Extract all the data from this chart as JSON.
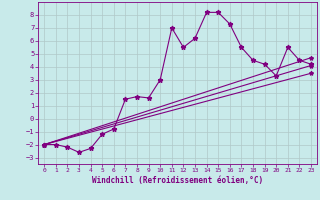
{
  "background_color": "#c8eaea",
  "grid_color": "#b0c8c8",
  "line_color": "#800080",
  "xlim": [
    -0.5,
    23.5
  ],
  "ylim": [
    -3.5,
    9.0
  ],
  "xticks": [
    0,
    1,
    2,
    3,
    4,
    5,
    6,
    7,
    8,
    9,
    10,
    11,
    12,
    13,
    14,
    15,
    16,
    17,
    18,
    19,
    20,
    21,
    22,
    23
  ],
  "yticks": [
    -3,
    -2,
    -1,
    0,
    1,
    2,
    3,
    4,
    5,
    6,
    7,
    8
  ],
  "xlabel": "Windchill (Refroidissement éolien,°C)",
  "series": [
    [
      0,
      -2.0
    ],
    [
      1,
      -2.0
    ],
    [
      2,
      -2.2
    ],
    [
      3,
      -2.6
    ],
    [
      4,
      -2.3
    ],
    [
      5,
      -1.2
    ],
    [
      6,
      -0.8
    ],
    [
      7,
      1.5
    ],
    [
      8,
      1.7
    ],
    [
      9,
      1.6
    ],
    [
      10,
      3.0
    ],
    [
      11,
      7.0
    ],
    [
      12,
      5.5
    ],
    [
      13,
      6.2
    ],
    [
      14,
      8.2
    ],
    [
      15,
      8.2
    ],
    [
      16,
      7.3
    ],
    [
      17,
      5.5
    ],
    [
      18,
      4.5
    ],
    [
      19,
      4.2
    ],
    [
      20,
      3.3
    ],
    [
      21,
      5.5
    ],
    [
      22,
      4.5
    ],
    [
      23,
      4.2
    ]
  ],
  "line2": [
    [
      0,
      -2.0
    ],
    [
      23,
      4.7
    ]
  ],
  "line3": [
    [
      0,
      -2.0
    ],
    [
      23,
      4.1
    ]
  ],
  "line4": [
    [
      0,
      -2.0
    ],
    [
      23,
      3.5
    ]
  ]
}
